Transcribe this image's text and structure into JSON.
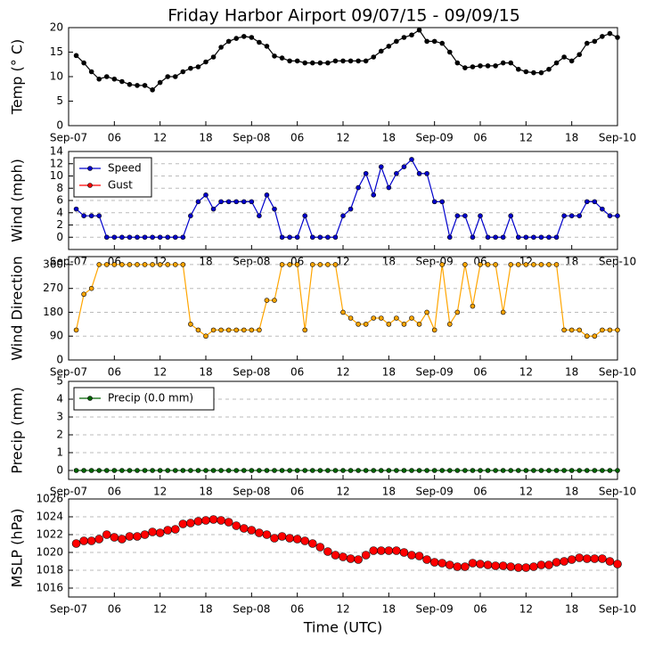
{
  "title": "Friday Harbor Airport 09/07/15 - 09/09/15",
  "chart_data": [
    {
      "type": "line",
      "y_label": "Temp (° C)",
      "grid": false,
      "xlim": [
        0,
        72
      ],
      "xticks": [
        {
          "value": 0,
          "label": "Sep-07"
        },
        {
          "value": 6,
          "label": "06"
        },
        {
          "value": 12,
          "label": "12"
        },
        {
          "value": 18,
          "label": "18"
        },
        {
          "value": 24,
          "label": "Sep-08"
        },
        {
          "value": 30,
          "label": "06"
        },
        {
          "value": 36,
          "label": "12"
        },
        {
          "value": 42,
          "label": "18"
        },
        {
          "value": 48,
          "label": "Sep-09"
        },
        {
          "value": 54,
          "label": "06"
        },
        {
          "value": 60,
          "label": "12"
        },
        {
          "value": 66,
          "label": "18"
        },
        {
          "value": 72,
          "label": "Sep-10"
        }
      ],
      "ylim": [
        0,
        20
      ],
      "yticks": [
        0,
        5,
        10,
        15,
        20
      ],
      "x": [
        1,
        2,
        3,
        4,
        5,
        6,
        7,
        8,
        9,
        10,
        11,
        12,
        13,
        14,
        15,
        16,
        17,
        18,
        19,
        20,
        21,
        22,
        23,
        24,
        25,
        26,
        27,
        28,
        29,
        30,
        31,
        32,
        33,
        34,
        35,
        36,
        37,
        38,
        39,
        40,
        41,
        42,
        43,
        44,
        45,
        46,
        47,
        48,
        49,
        50,
        51,
        52,
        53,
        54,
        55,
        56,
        57,
        58,
        59,
        60,
        61,
        62,
        63,
        64,
        65,
        66,
        67,
        68,
        69,
        70,
        71,
        72
      ],
      "series": [
        {
          "color": "#000000",
          "values": [
            14.3,
            12.8,
            11,
            9.5,
            10,
            9.5,
            9,
            8.4,
            8.2,
            8.2,
            7.3,
            8.8,
            10,
            10,
            11,
            11.7,
            12,
            13,
            14,
            16,
            17.2,
            17.8,
            18.2,
            18,
            17,
            16.2,
            14.2,
            13.8,
            13.2,
            13.2,
            12.8,
            12.8,
            12.8,
            12.8,
            13.2,
            13.2,
            13.2,
            13.2,
            13.2,
            14,
            15.2,
            16.2,
            17.2,
            18,
            18.5,
            19.5,
            17.2,
            17.2,
            16.8,
            15,
            12.8,
            11.8,
            12,
            12.2,
            12.2,
            12.2,
            12.8,
            12.8,
            11.5,
            11,
            10.8,
            10.8,
            11.5,
            12.8,
            14,
            13.2,
            14.5,
            16.8,
            17.2,
            18.2,
            18.8,
            18
          ]
        }
      ]
    },
    {
      "type": "line",
      "y_label": "Wind (mph)",
      "grid": true,
      "legend": "upper left",
      "xlim": [
        0,
        72
      ],
      "xticks": [
        {
          "value": 0,
          "label": "Sep-07"
        },
        {
          "value": 6,
          "label": "06"
        },
        {
          "value": 12,
          "label": "12"
        },
        {
          "value": 18,
          "label": "18"
        },
        {
          "value": 24,
          "label": "Sep-08"
        },
        {
          "value": 30,
          "label": "06"
        },
        {
          "value": 36,
          "label": "12"
        },
        {
          "value": 42,
          "label": "18"
        },
        {
          "value": 48,
          "label": "Sep-09"
        },
        {
          "value": 54,
          "label": "06"
        },
        {
          "value": 60,
          "label": "12"
        },
        {
          "value": 66,
          "label": "18"
        },
        {
          "value": 72,
          "label": "Sep-10"
        }
      ],
      "ylim": [
        -2,
        14
      ],
      "yticks": [
        0,
        2,
        4,
        6,
        8,
        10,
        12,
        14
      ],
      "x": [
        1,
        2,
        3,
        4,
        5,
        6,
        7,
        8,
        9,
        10,
        11,
        12,
        13,
        14,
        15,
        16,
        17,
        18,
        19,
        20,
        21,
        22,
        23,
        24,
        25,
        26,
        27,
        28,
        29,
        30,
        31,
        32,
        33,
        34,
        35,
        36,
        37,
        38,
        39,
        40,
        41,
        42,
        43,
        44,
        45,
        46,
        47,
        48,
        49,
        50,
        51,
        52,
        53,
        54,
        55,
        56,
        57,
        58,
        59,
        60,
        61,
        62,
        63,
        64,
        65,
        66,
        67,
        68,
        69,
        70,
        71,
        72
      ],
      "series": [
        {
          "name": "Speed",
          "color": "#0000cc",
          "values": [
            4.6,
            3.5,
            3.5,
            3.5,
            0,
            0,
            0,
            0,
            0,
            0,
            0,
            0,
            0,
            0,
            0,
            3.5,
            5.8,
            6.9,
            4.6,
            5.8,
            5.8,
            5.8,
            5.8,
            5.8,
            3.5,
            6.9,
            4.6,
            0,
            0,
            0,
            3.5,
            0,
            0,
            0,
            0,
            3.5,
            4.6,
            8.1,
            10.4,
            6.9,
            11.5,
            8.1,
            10.4,
            11.5,
            12.7,
            10.4,
            10.4,
            5.8,
            5.8,
            0,
            3.5,
            3.5,
            0,
            3.5,
            0,
            0,
            0,
            3.5,
            0,
            0,
            0,
            0,
            0,
            0,
            3.5,
            3.5,
            3.5,
            5.8,
            5.8,
            4.6,
            3.5,
            3.5
          ]
        },
        {
          "name": "Gust",
          "color": "#ff0000",
          "values": [
            null,
            null,
            null,
            null,
            null,
            null,
            null,
            null,
            null,
            null,
            null,
            null,
            null,
            null,
            null,
            null,
            null,
            null,
            null,
            null,
            null,
            null,
            null,
            null,
            null,
            null,
            null,
            null,
            null,
            null,
            null,
            null,
            null,
            null,
            null,
            null,
            null,
            null,
            null,
            null,
            null,
            null,
            null,
            null,
            null,
            null,
            null,
            null,
            null,
            null,
            null,
            null,
            null,
            null,
            null,
            null,
            null,
            null,
            null,
            null,
            null,
            null,
            null,
            null,
            null,
            null,
            null,
            null,
            null,
            null,
            null,
            null
          ]
        }
      ]
    },
    {
      "type": "line",
      "y_label": "Wind Direction",
      "grid": true,
      "xlim": [
        0,
        72
      ],
      "xticks": [
        {
          "value": 0,
          "label": "Sep-07"
        },
        {
          "value": 6,
          "label": "06"
        },
        {
          "value": 12,
          "label": "12"
        },
        {
          "value": 18,
          "label": "18"
        },
        {
          "value": 24,
          "label": "Sep-08"
        },
        {
          "value": 30,
          "label": "06"
        },
        {
          "value": 36,
          "label": "12"
        },
        {
          "value": 42,
          "label": "18"
        },
        {
          "value": 48,
          "label": "Sep-09"
        },
        {
          "value": 54,
          "label": "06"
        },
        {
          "value": 60,
          "label": "12"
        },
        {
          "value": 66,
          "label": "18"
        },
        {
          "value": 72,
          "label": "Sep-10"
        }
      ],
      "ylim": [
        0,
        390
      ],
      "yticks": [
        0,
        90,
        180,
        270,
        360
      ],
      "x": [
        1,
        2,
        3,
        4,
        5,
        6,
        7,
        8,
        9,
        10,
        11,
        12,
        13,
        14,
        15,
        16,
        17,
        18,
        19,
        20,
        21,
        22,
        23,
        24,
        25,
        26,
        27,
        28,
        29,
        30,
        31,
        32,
        33,
        34,
        35,
        36,
        37,
        38,
        39,
        40,
        41,
        42,
        43,
        44,
        45,
        46,
        47,
        48,
        49,
        50,
        51,
        52,
        53,
        54,
        55,
        56,
        57,
        58,
        59,
        60,
        61,
        62,
        63,
        64,
        65,
        66,
        67,
        68,
        69,
        70,
        71,
        72
      ],
      "series": [
        {
          "color": "#ffa500",
          "values": [
            113,
            248,
            270,
            360,
            360,
            360,
            360,
            360,
            360,
            360,
            360,
            360,
            360,
            360,
            360,
            135,
            113,
            90,
            113,
            113,
            113,
            113,
            113,
            113,
            113,
            225,
            225,
            360,
            360,
            360,
            113,
            360,
            360,
            360,
            360,
            180,
            158,
            135,
            135,
            158,
            158,
            135,
            158,
            135,
            158,
            135,
            180,
            113,
            360,
            135,
            180,
            360,
            203,
            360,
            360,
            360,
            180,
            360,
            360,
            360,
            360,
            360,
            360,
            360,
            113,
            113,
            113,
            90,
            90,
            113,
            113,
            113
          ]
        }
      ]
    },
    {
      "type": "line",
      "y_label": "Precip (mm)",
      "grid": true,
      "legend": "upper left",
      "xlim": [
        0,
        72
      ],
      "xticks": [
        {
          "value": 0,
          "label": "Sep-07"
        },
        {
          "value": 6,
          "label": "06"
        },
        {
          "value": 12,
          "label": "12"
        },
        {
          "value": 18,
          "label": "18"
        },
        {
          "value": 24,
          "label": "Sep-08"
        },
        {
          "value": 30,
          "label": "06"
        },
        {
          "value": 36,
          "label": "12"
        },
        {
          "value": 42,
          "label": "18"
        },
        {
          "value": 48,
          "label": "Sep-09"
        },
        {
          "value": 54,
          "label": "06"
        },
        {
          "value": 60,
          "label": "12"
        },
        {
          "value": 66,
          "label": "18"
        },
        {
          "value": 72,
          "label": "Sep-10"
        }
      ],
      "ylim": [
        -0.5,
        5
      ],
      "yticks": [
        0,
        1,
        2,
        3,
        4,
        5
      ],
      "x": [
        1,
        2,
        3,
        4,
        5,
        6,
        7,
        8,
        9,
        10,
        11,
        12,
        13,
        14,
        15,
        16,
        17,
        18,
        19,
        20,
        21,
        22,
        23,
        24,
        25,
        26,
        27,
        28,
        29,
        30,
        31,
        32,
        33,
        34,
        35,
        36,
        37,
        38,
        39,
        40,
        41,
        42,
        43,
        44,
        45,
        46,
        47,
        48,
        49,
        50,
        51,
        52,
        53,
        54,
        55,
        56,
        57,
        58,
        59,
        60,
        61,
        62,
        63,
        64,
        65,
        66,
        67,
        68,
        69,
        70,
        71,
        72
      ],
      "series": [
        {
          "name": "Precip (0.0 mm)",
          "color": "#006400",
          "values": [
            0,
            0,
            0,
            0,
            0,
            0,
            0,
            0,
            0,
            0,
            0,
            0,
            0,
            0,
            0,
            0,
            0,
            0,
            0,
            0,
            0,
            0,
            0,
            0,
            0,
            0,
            0,
            0,
            0,
            0,
            0,
            0,
            0,
            0,
            0,
            0,
            0,
            0,
            0,
            0,
            0,
            0,
            0,
            0,
            0,
            0,
            0,
            0,
            0,
            0,
            0,
            0,
            0,
            0,
            0,
            0,
            0,
            0,
            0,
            0,
            0,
            0,
            0,
            0,
            0,
            0,
            0,
            0,
            0,
            0,
            0,
            0
          ]
        }
      ]
    },
    {
      "type": "line",
      "y_label": "MSLP (hPa)",
      "x_label": "Time (UTC)",
      "grid": true,
      "xlim": [
        0,
        72
      ],
      "xticks": [
        {
          "value": 0,
          "label": "Sep-07"
        },
        {
          "value": 6,
          "label": "06"
        },
        {
          "value": 12,
          "label": "12"
        },
        {
          "value": 18,
          "label": "18"
        },
        {
          "value": 24,
          "label": "Sep-08"
        },
        {
          "value": 30,
          "label": "06"
        },
        {
          "value": 36,
          "label": "12"
        },
        {
          "value": 42,
          "label": "18"
        },
        {
          "value": 48,
          "label": "Sep-09"
        },
        {
          "value": 54,
          "label": "06"
        },
        {
          "value": 60,
          "label": "12"
        },
        {
          "value": 66,
          "label": "18"
        },
        {
          "value": 72,
          "label": "Sep-10"
        }
      ],
      "ylim": [
        1015,
        1026
      ],
      "yticks": [
        1016,
        1018,
        1020,
        1022,
        1024,
        1026
      ],
      "x": [
        1,
        2,
        3,
        4,
        5,
        6,
        7,
        8,
        9,
        10,
        11,
        12,
        13,
        14,
        15,
        16,
        17,
        18,
        19,
        20,
        21,
        22,
        23,
        24,
        25,
        26,
        27,
        28,
        29,
        30,
        31,
        32,
        33,
        34,
        35,
        36,
        37,
        38,
        39,
        40,
        41,
        42,
        43,
        44,
        45,
        46,
        47,
        48,
        49,
        50,
        51,
        52,
        53,
        54,
        55,
        56,
        57,
        58,
        59,
        60,
        61,
        62,
        63,
        64,
        65,
        66,
        67,
        68,
        69,
        70,
        71,
        72
      ],
      "series": [
        {
          "color": "#ff0000",
          "line": false,
          "values": [
            1021,
            1021.3,
            1021.3,
            1021.5,
            1022,
            1021.7,
            1021.5,
            1021.8,
            1021.8,
            1022,
            1022.3,
            1022.2,
            1022.5,
            1022.6,
            1023.2,
            1023.3,
            1023.5,
            1023.6,
            1023.7,
            1023.6,
            1023.4,
            1023,
            1022.7,
            1022.5,
            1022.2,
            1022,
            1021.6,
            1021.8,
            1021.6,
            1021.5,
            1021.3,
            1021,
            1020.6,
            1020.1,
            1019.7,
            1019.5,
            1019.3,
            1019.2,
            1019.7,
            1020.2,
            1020.2,
            1020.2,
            1020.2,
            1020,
            1019.7,
            1019.6,
            1019.2,
            1018.9,
            1018.8,
            1018.6,
            1018.4,
            1018.4,
            1018.8,
            1018.7,
            1018.6,
            1018.5,
            1018.5,
            1018.4,
            1018.3,
            1018.3,
            1018.4,
            1018.6,
            1018.6,
            1018.9,
            1019,
            1019.2,
            1019.4,
            1019.3,
            1019.3,
            1019.3,
            1019,
            1018.7
          ]
        }
      ]
    }
  ]
}
